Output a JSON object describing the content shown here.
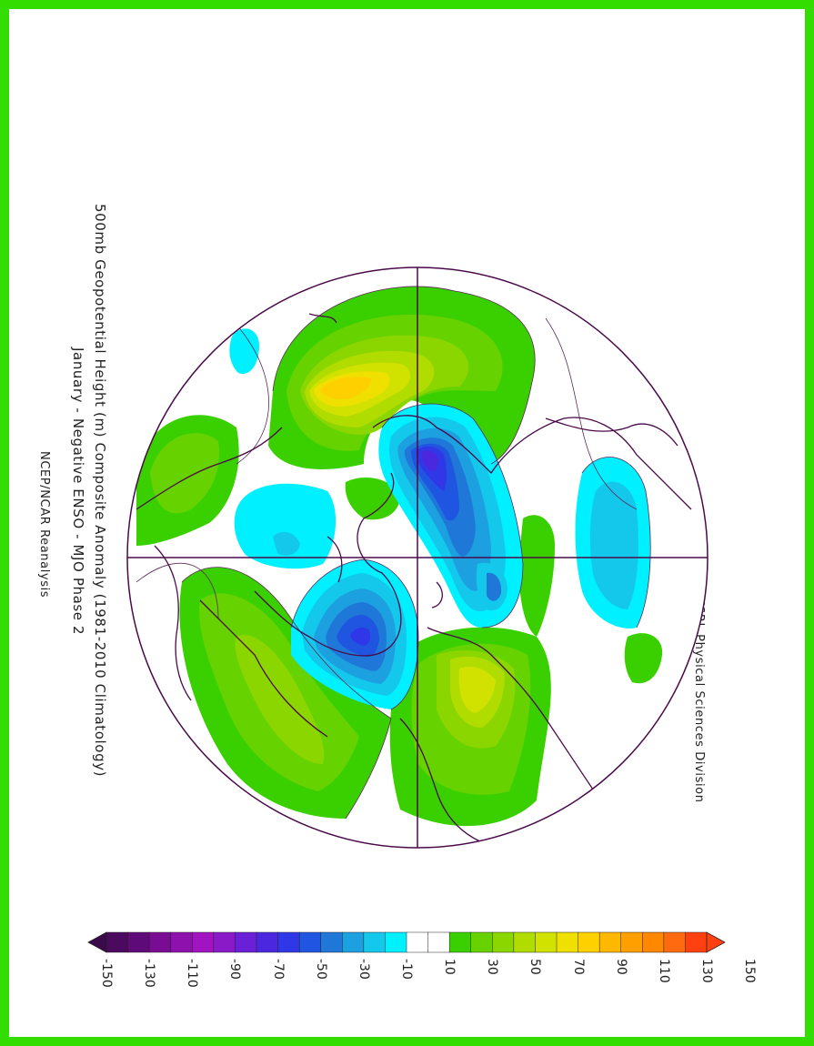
{
  "title_line1": "500mb Geopotential Height (m) Composite Anomaly (1981-2010 Climatology)",
  "title_line2": "January - Negative ENSO - MJO Phase 2",
  "source": "NCEP/NCAR Reanalysis",
  "credit": "NOAA/ESRL Physical Sciences Division",
  "colorbar": {
    "colors": [
      "#4b0a5e",
      "#5e0a78",
      "#7a0c94",
      "#8e10ad",
      "#a014c2",
      "#8a1ac8",
      "#6a20d6",
      "#4b28e0",
      "#2f37e6",
      "#1f55e0",
      "#1f78d8",
      "#1ca0e0",
      "#14c8ec",
      "#00f0ff",
      "#ffffff",
      "#ffffff",
      "#3ad000",
      "#66d200",
      "#8cd600",
      "#b0dc00",
      "#d2e200",
      "#f0e000",
      "#ffd000",
      "#ffb800",
      "#ffa000",
      "#ff8800",
      "#ff6a10",
      "#ff4010"
    ],
    "labels": [
      "-150",
      "-130",
      "-110",
      "-90",
      "-70",
      "-50",
      "-30",
      "-10",
      "10",
      "30",
      "50",
      "70",
      "90",
      "110",
      "130",
      "150"
    ]
  }
}
